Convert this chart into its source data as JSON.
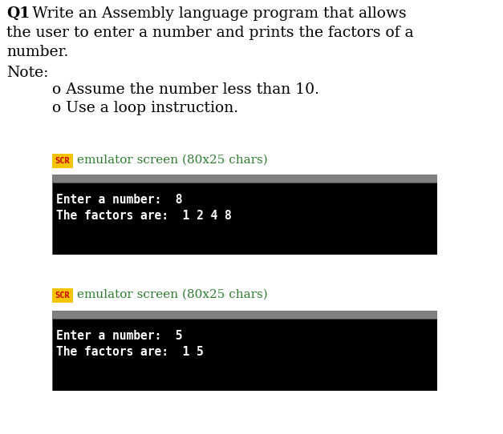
{
  "bg_color": "#ffffff",
  "title_bold": "Q1",
  "title_colon_rest": ": Write an Assembly language program that allows",
  "title_line2": "the user to enter a number and prints the factors of a",
  "title_line3": "number.",
  "note_label": "Note:",
  "note_item1": "o Assume the number less than 10.",
  "note_item2": "o Use a loop instruction.",
  "ser_label": "emulator screen (80x25 chars)",
  "ser_badge_bg": "#f5c400",
  "ser_badge_fg": "#cc0000",
  "ser_badge_text": "SCR",
  "screen1_line1": "Enter a number:  8",
  "screen1_line2": "The factors are:  1 2 4 8",
  "screen2_line1": "Enter a number:  5",
  "screen2_line2": "The factors are:  1 5",
  "screen_bg": "#000000",
  "screen_fg": "#ffffff",
  "screen_header_bg": "#808080",
  "title_fontsize": 13.5,
  "note_fontsize": 13.5,
  "screen_fontsize": 10.5,
  "label_fontsize": 11,
  "label_color": "#2e7d2e"
}
